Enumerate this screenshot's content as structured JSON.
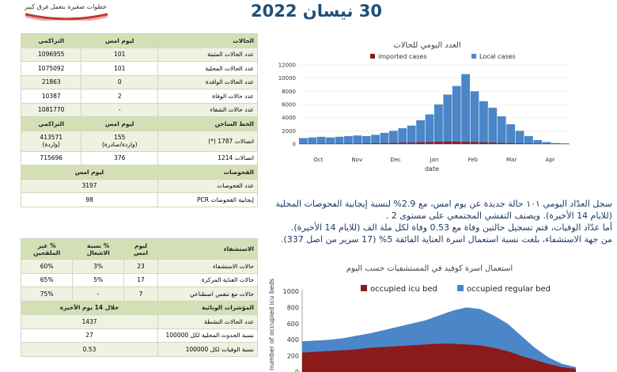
{
  "header": {
    "logo_text": "خطوات صغيرة بتعمل فرق كبير",
    "date_title": "30 نيسان 2022"
  },
  "table": {
    "cases_header": {
      "label": "الحالات",
      "today": "ليوم امس",
      "cumulative": "التراكمي"
    },
    "cases": [
      {
        "label": "عدد الحالات المثبتة",
        "today": "101",
        "cumulative": "1096955"
      },
      {
        "label": "عدد الحالات المحلية",
        "today": "101",
        "cumulative": "1075092"
      },
      {
        "label": "عدد الحالات الوافدة",
        "today": "0",
        "cumulative": "21863"
      },
      {
        "label": "عدد حالات الوفاة",
        "today": "2",
        "cumulative": "10387"
      },
      {
        "label": "عدد حالات الشفاء",
        "today": "-",
        "cumulative": "1081770"
      }
    ],
    "hotline_header": {
      "label": "الخط الساخن",
      "today": "ليوم امس",
      "cumulative": "التراكمي"
    },
    "hotline": [
      {
        "label": "اتصالات 1787 (*)",
        "today": "155",
        "today_sub": "(واردة/صادرة)",
        "cumulative": "413571",
        "cumulative_sub": "(واردة)"
      },
      {
        "label": "اتصالات 1214",
        "today": "376",
        "cumulative": "715696"
      }
    ],
    "tests_header": {
      "label": "الفحوصات",
      "today": "ليوم امس"
    },
    "tests": [
      {
        "label": "عدد الفحوصات",
        "value": "3197"
      },
      {
        "label": "إيجابية الفحوصات PCR",
        "value": "98"
      }
    ],
    "hosp_header": {
      "label": "الاستشفاء",
      "today": "ليوم امس",
      "occupancy": "% نسبة الاشغال",
      "unvacc": "% غير الملقحين"
    },
    "hosp": [
      {
        "label": "حالات الاستشفاء",
        "today": "23",
        "occupancy": "3%",
        "unvacc": "60%"
      },
      {
        "label": "حالات العناية المركزة",
        "today": "17",
        "occupancy": "5%",
        "unvacc": "65%"
      },
      {
        "label": "حالات مع تنفس اصطناعي",
        "today": "7",
        "occupancy": "-",
        "unvacc": "75%"
      }
    ],
    "epi_header": {
      "label": "المؤشرات الوبائية",
      "period": "خلال 14 يوم الأخيرة"
    },
    "epi": [
      {
        "label": "عدد الحالات النشطة",
        "value": "1437"
      },
      {
        "label": "نسبة الحدوث المحلية لكل 100000",
        "value": "27"
      },
      {
        "label": "نسبة الوفيات لكل 100000",
        "value": "0.53"
      }
    ]
  },
  "chart1": {
    "title": "العدد اليومي للحالات",
    "xlabel": "date",
    "legend": [
      "imported cases",
      "Local cases"
    ],
    "colors": {
      "imported": "#8b1a1a",
      "local": "#4a86c8"
    },
    "yticks": [
      "0",
      "2000",
      "4000",
      "6000",
      "8000",
      "10000",
      "12000"
    ],
    "xticks": [
      "Oct",
      "Nov",
      "Dec",
      "Jan",
      "Feb",
      "Mar",
      "Apr"
    ]
  },
  "paragraph": {
    "line1": "سجل العدّاد اليومي ١٠١ حالة جديدة عن يوم امس، مع 2.9% لنسبة إيجابية الفحوصات المحلية",
    "line2": "(للايام 14 الأخيرة). ويصنف التفشي المجتمعي على مستوى 2 .",
    "line3": "أما عدّاد الوفيات، فتم تسجيل حالتين وفاة مع 0.53 وفاة لكل ملة الف (للايام 14 الأخيرة).",
    "line4": "من جهة الاستشفاء، بلغت نسبة استعمال اسرة العناية الفائقة 5% (17 سرير من اصل 337)."
  },
  "chart2": {
    "title": "استعمال اسرة كوفيد في المستشفيات حسب اليوم",
    "ylabel": "number of occupied icu beds",
    "legend": [
      "occupied icu bed",
      "occupied regular bed"
    ],
    "colors": {
      "icu": "#8b1a1a",
      "regular": "#4a86c8"
    },
    "yticks": [
      "0",
      "200",
      "400",
      "600",
      "800",
      "1000"
    ]
  },
  "chart_data": [
    {
      "type": "bar",
      "title": "العدد اليومي للحالات",
      "xlabel": "date",
      "ylabel": "",
      "ylim": [
        0,
        12000
      ],
      "x_range": [
        "Oct",
        "Apr"
      ],
      "series": [
        {
          "name": "imported cases",
          "values": [
            60,
            60,
            70,
            70,
            80,
            80,
            90,
            100,
            120,
            150,
            180,
            200,
            220,
            260,
            300,
            340,
            380,
            360,
            320,
            300,
            260,
            220,
            180,
            150,
            120,
            100,
            80,
            70,
            60,
            60
          ]
        },
        {
          "name": "Local cases",
          "values": [
            900,
            1000,
            1100,
            1000,
            1100,
            1200,
            1300,
            1200,
            1400,
            1700,
            2000,
            2400,
            2800,
            3600,
            4500,
            6000,
            7500,
            8800,
            10600,
            8000,
            6500,
            5500,
            4200,
            3000,
            2000,
            1200,
            600,
            300,
            150,
            100
          ]
        }
      ]
    },
    {
      "type": "area",
      "title": "استعمال اسرة كوفيد في المستشفيات حسب اليوم",
      "ylabel": "number of occupied icu beds",
      "ylim": [
        0,
        1000
      ],
      "series": [
        {
          "name": "occupied icu bed",
          "values": [
            240,
            250,
            260,
            270,
            280,
            300,
            310,
            320,
            330,
            340,
            350,
            350,
            340,
            330,
            300,
            260,
            200,
            150,
            100,
            60,
            40
          ]
        },
        {
          "name": "occupied regular bed",
          "values": [
            380,
            390,
            400,
            420,
            450,
            480,
            520,
            560,
            600,
            640,
            700,
            760,
            800,
            780,
            700,
            600,
            450,
            300,
            180,
            100,
            60
          ]
        }
      ]
    }
  ]
}
